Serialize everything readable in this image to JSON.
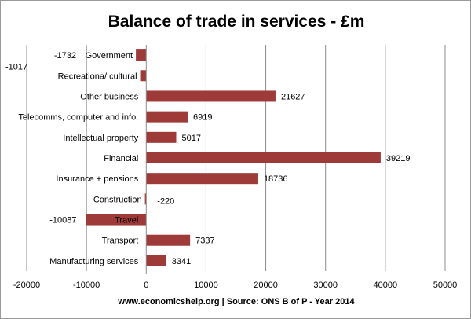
{
  "chart_data": {
    "type": "bar",
    "orientation": "horizontal",
    "title": "Balance of trade in services - £m",
    "categories": [
      "Government",
      "Recreationa/ cultural",
      "Other business",
      "Telecomms, computer and info.",
      "Intellectual property",
      "Financial",
      "Insurance + pensions",
      "Construction",
      "Travel",
      "Transport",
      "Manufacturing  services"
    ],
    "values": [
      -1732,
      -1017,
      21627,
      6919,
      5017,
      39219,
      18736,
      -220,
      -10087,
      7337,
      3341
    ],
    "value_labels": [
      "-1732",
      "-1017",
      "21627",
      "6919",
      "5017",
      "39219",
      "18736",
      "-220",
      "-10087",
      "7337",
      "3341"
    ],
    "xlim": [
      -20000,
      50000
    ],
    "xticks": [
      -20000,
      -10000,
      0,
      10000,
      20000,
      30000,
      40000,
      50000
    ],
    "xtick_labels": [
      "-20000",
      "-10000",
      "0",
      "10000",
      "20000",
      "30000",
      "40000",
      "50000"
    ],
    "grid": "vertical",
    "bar_color": "#9e3a38",
    "source": "www.economicshelp.org | Source: ONS B of P - Year 2014"
  }
}
